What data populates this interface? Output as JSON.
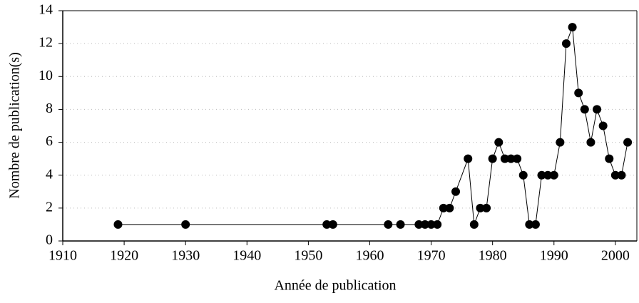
{
  "chart_data": {
    "type": "line",
    "x_label": "Année de publication",
    "y_label": "Nombre de publication(s)",
    "x": [
      1919,
      1930,
      1953,
      1954,
      1963,
      1965,
      1968,
      1969,
      1970,
      1971,
      1972,
      1973,
      1974,
      1976,
      1977,
      1978,
      1979,
      1980,
      1981,
      1982,
      1983,
      1984,
      1985,
      1986,
      1987,
      1988,
      1989,
      1990,
      1991,
      1992,
      1993,
      1994,
      1995,
      1996,
      1997,
      1998,
      1999,
      2000,
      2001,
      2002
    ],
    "values": [
      1,
      1,
      1,
      1,
      1,
      1,
      1,
      1,
      1,
      1,
      2,
      2,
      3,
      5,
      1,
      2,
      2,
      5,
      6,
      5,
      5,
      5,
      4,
      1,
      1,
      4,
      4,
      4,
      6,
      12,
      13,
      9,
      8,
      6,
      8,
      7,
      5,
      4,
      4,
      6
    ],
    "color": "#000000",
    "xlim": [
      1910,
      2003.5
    ],
    "xticks": [
      1910,
      1920,
      1930,
      1940,
      1950,
      1960,
      1970,
      1980,
      1990,
      2000
    ],
    "ylim": [
      0,
      14
    ],
    "yticks": [
      0,
      2,
      4,
      6,
      8,
      10,
      12,
      14
    ],
    "grid": true
  }
}
